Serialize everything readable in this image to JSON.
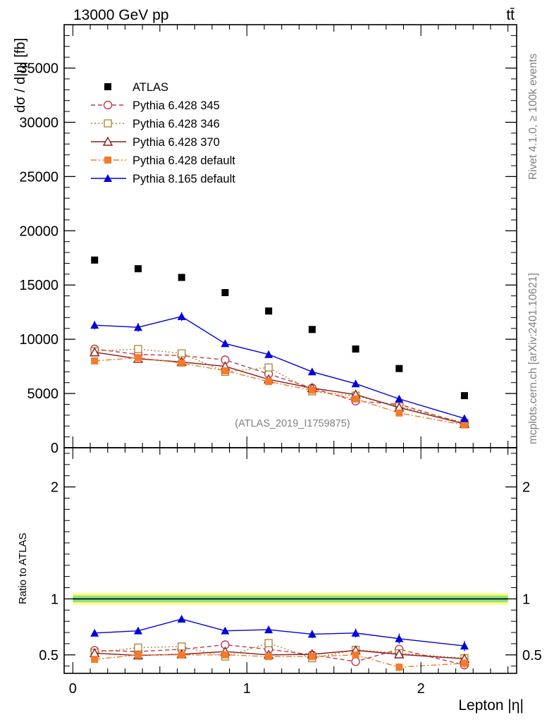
{
  "header": {
    "energy_label": "13000 GeV pp",
    "process_label": "tt̄"
  },
  "side": {
    "rivet_label": "Rivet 4.1.0, ≥ 100k events",
    "mcplots_label": "mcplots.cern.ch [arXiv:2401.10621]"
  },
  "chart_data": [
    {
      "type": "scatter",
      "panel": "main",
      "ylabel": "dσ / d|η| [fb]",
      "ylim": [
        0,
        39000
      ],
      "yticks": [
        0,
        5000,
        10000,
        15000,
        20000,
        25000,
        30000,
        35000
      ],
      "ytick_labels": [
        "0",
        "5000",
        "10000",
        "15000",
        "20000",
        "25000",
        "30000",
        "35000"
      ],
      "xlim": [
        -0.05,
        2.55
      ],
      "watermark": "(ATLAS_2019_I1759875)",
      "x": [
        0.125,
        0.375,
        0.625,
        0.875,
        1.125,
        1.375,
        1.625,
        1.875,
        2.25
      ],
      "series": [
        {
          "name": "ATLAS",
          "color": "#000000",
          "marker": "square-filled",
          "values": [
            17300,
            16500,
            15700,
            14300,
            12600,
            10900,
            9100,
            7300,
            4800
          ]
        },
        {
          "name": "Pythia 6.428 345",
          "color": "#c0394b",
          "marker": "circle-open",
          "dash": "dashed",
          "values": [
            9100,
            8600,
            8500,
            8100,
            6800,
            5500,
            4300,
            4000,
            2200
          ],
          "errors": [
            300,
            300,
            300,
            300,
            300,
            250,
            250,
            250,
            200
          ]
        },
        {
          "name": "Pythia 6.428 346",
          "color": "#a88a3d",
          "marker": "square-open",
          "dash": "dotted",
          "values": [
            8900,
            9100,
            8700,
            7000,
            7400,
            5200,
            4800,
            3800,
            2300
          ],
          "errors": [
            300,
            300,
            300,
            300,
            300,
            250,
            250,
            250,
            200
          ]
        },
        {
          "name": "Pythia 6.428 370",
          "color": "#8b1a1a",
          "marker": "triangle-open",
          "dash": "solid",
          "values": [
            8800,
            8200,
            7900,
            7500,
            6300,
            5500,
            4900,
            3700,
            2200
          ],
          "errors": [
            300,
            300,
            300,
            300,
            300,
            250,
            250,
            250,
            200
          ]
        },
        {
          "name": "Pythia 6.428 default",
          "color": "#f47b2a",
          "marker": "square-filled",
          "dash": "dashdot",
          "values": [
            8000,
            8300,
            7800,
            7100,
            6100,
            5300,
            4500,
            3200,
            2100
          ],
          "errors": [
            300,
            300,
            300,
            300,
            300,
            250,
            250,
            250,
            200
          ]
        },
        {
          "name": "Pythia 8.165 default",
          "color": "#0000dd",
          "marker": "triangle-filled",
          "dash": "solid",
          "values": [
            11300,
            11100,
            12100,
            9600,
            8600,
            7000,
            5900,
            4500,
            2700
          ],
          "errors": [
            400,
            400,
            400,
            300,
            300,
            300,
            300,
            250,
            200
          ]
        }
      ]
    },
    {
      "type": "scatter",
      "panel": "ratio",
      "ylabel": "Ratio to ATLAS",
      "xlabel": "Lepton |η|",
      "ylim": [
        0.335,
        2.35
      ],
      "yticks": [
        0.5,
        1,
        2
      ],
      "ytick_labels": [
        "0.5",
        "1",
        "2"
      ],
      "xlim": [
        -0.05,
        2.55
      ],
      "xticks": [
        0,
        1,
        2
      ],
      "xtick_labels": [
        "0",
        "1",
        "2"
      ],
      "band": {
        "low": 0.95,
        "high": 1.05,
        "color": "#ffff66"
      },
      "band_inner": {
        "low": 0.97,
        "high": 1.03,
        "color": "#8de08d"
      },
      "x": [
        0.125,
        0.375,
        0.625,
        0.875,
        1.125,
        1.375,
        1.625,
        1.875,
        2.25
      ],
      "series": [
        {
          "name": "Pythia 6.428 345",
          "color": "#c0394b",
          "marker": "circle-open",
          "dash": "dashed",
          "values": [
            0.54,
            0.53,
            0.55,
            0.59,
            0.55,
            0.5,
            0.44,
            0.55,
            0.41
          ],
          "errors": [
            0.02,
            0.02,
            0.02,
            0.02,
            0.025,
            0.025,
            0.03,
            0.035,
            0.04
          ]
        },
        {
          "name": "Pythia 6.428 346",
          "color": "#a88a3d",
          "marker": "square-open",
          "dash": "dotted",
          "values": [
            0.52,
            0.565,
            0.575,
            0.485,
            0.605,
            0.47,
            0.545,
            0.515,
            0.47
          ],
          "errors": [
            0.02,
            0.02,
            0.02,
            0.02,
            0.025,
            0.025,
            0.03,
            0.035,
            0.04
          ]
        },
        {
          "name": "Pythia 6.428 370",
          "color": "#8b1a1a",
          "marker": "triangle-open",
          "dash": "solid",
          "values": [
            0.515,
            0.495,
            0.505,
            0.53,
            0.5,
            0.505,
            0.54,
            0.505,
            0.465
          ],
          "errors": [
            0.02,
            0.02,
            0.02,
            0.02,
            0.025,
            0.025,
            0.03,
            0.035,
            0.04
          ]
        },
        {
          "name": "Pythia 6.428 default",
          "color": "#f47b2a",
          "marker": "square-filled",
          "dash": "dashdot",
          "values": [
            0.46,
            0.5,
            0.5,
            0.5,
            0.485,
            0.485,
            0.5,
            0.39,
            0.425
          ],
          "errors": [
            0.02,
            0.02,
            0.02,
            0.02,
            0.025,
            0.025,
            0.03,
            0.035,
            0.04
          ]
        },
        {
          "name": "Pythia 8.165 default",
          "color": "#0000dd",
          "marker": "triangle-filled",
          "dash": "solid",
          "values": [
            0.695,
            0.715,
            0.82,
            0.715,
            0.725,
            0.685,
            0.695,
            0.645,
            0.58
          ],
          "errors": [
            0.025,
            0.025,
            0.025,
            0.025,
            0.03,
            0.035,
            0.04,
            0.045,
            0.045
          ]
        }
      ]
    }
  ]
}
